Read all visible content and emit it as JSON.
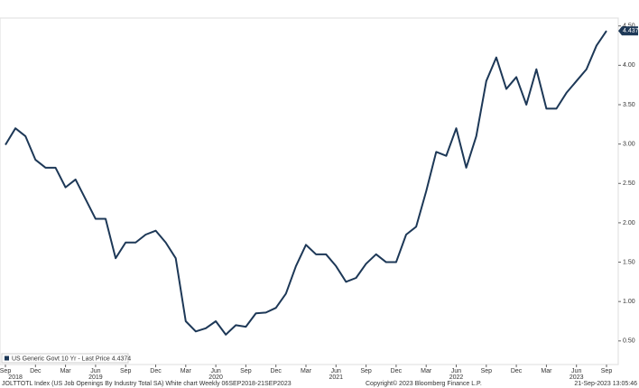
{
  "chart_data": {
    "type": "line",
    "x": [
      "2018-09",
      "2018-10",
      "2018-11",
      "2018-12",
      "2019-01",
      "2019-02",
      "2019-03",
      "2019-04",
      "2019-05",
      "2019-06",
      "2019-07",
      "2019-08",
      "2019-09",
      "2019-10",
      "2019-11",
      "2019-12",
      "2020-01",
      "2020-02",
      "2020-03",
      "2020-04",
      "2020-05",
      "2020-06",
      "2020-07",
      "2020-08",
      "2020-09",
      "2020-10",
      "2020-11",
      "2020-12",
      "2021-01",
      "2021-02",
      "2021-03",
      "2021-04",
      "2021-05",
      "2021-06",
      "2021-07",
      "2021-08",
      "2021-09",
      "2021-10",
      "2021-11",
      "2021-12",
      "2022-01",
      "2022-02",
      "2022-03",
      "2022-04",
      "2022-05",
      "2022-06",
      "2022-07",
      "2022-08",
      "2022-09",
      "2022-10",
      "2022-11",
      "2022-12",
      "2023-01",
      "2023-02",
      "2023-03",
      "2023-04",
      "2023-05",
      "2023-06",
      "2023-07",
      "2023-08",
      "2023-09"
    ],
    "series": [
      {
        "name": "US Generic Govt 10 Yr - Last Price 4.4374",
        "color": "#1d3857",
        "values": [
          2.99,
          3.2,
          3.1,
          2.8,
          2.7,
          2.7,
          2.45,
          2.55,
          2.3,
          2.05,
          2.05,
          1.55,
          1.75,
          1.75,
          1.85,
          1.9,
          1.75,
          1.55,
          0.75,
          0.62,
          0.66,
          0.75,
          0.58,
          0.7,
          0.68,
          0.85,
          0.86,
          0.92,
          1.1,
          1.45,
          1.72,
          1.6,
          1.6,
          1.45,
          1.25,
          1.3,
          1.48,
          1.6,
          1.5,
          1.5,
          1.85,
          1.95,
          2.4,
          2.9,
          2.85,
          3.2,
          2.7,
          3.1,
          3.8,
          4.1,
          3.7,
          3.85,
          3.5,
          3.95,
          3.45,
          3.45,
          3.65,
          3.8,
          3.95,
          4.25,
          4.4374
        ]
      }
    ],
    "xlim": [
      "2018-09",
      "2023-09"
    ],
    "xticks": [
      {
        "value": "2018-09",
        "label": "Sep"
      },
      {
        "value": "2018-12",
        "label": "Dec"
      },
      {
        "value": "2019-03",
        "label": "Mar"
      },
      {
        "value": "2019-06",
        "label": "Jun"
      },
      {
        "value": "2019-09",
        "label": "Sep"
      },
      {
        "value": "2019-12",
        "label": "Dec"
      },
      {
        "value": "2020-03",
        "label": "Mar"
      },
      {
        "value": "2020-06",
        "label": "Jun"
      },
      {
        "value": "2020-09",
        "label": "Sep"
      },
      {
        "value": "2020-12",
        "label": "Dec"
      },
      {
        "value": "2021-03",
        "label": "Mar"
      },
      {
        "value": "2021-06",
        "label": "Jun"
      },
      {
        "value": "2021-09",
        "label": "Sep"
      },
      {
        "value": "2021-12",
        "label": "Dec"
      },
      {
        "value": "2022-03",
        "label": "Mar"
      },
      {
        "value": "2022-06",
        "label": "Jun"
      },
      {
        "value": "2022-09",
        "label": "Sep"
      },
      {
        "value": "2022-12",
        "label": "Dec"
      },
      {
        "value": "2023-03",
        "label": "Mar"
      },
      {
        "value": "2023-06",
        "label": "Jun"
      },
      {
        "value": "2023-09",
        "label": "Sep"
      }
    ],
    "year_labels": [
      {
        "value": "2018-10",
        "label": "2018"
      },
      {
        "value": "2019-06",
        "label": "2019"
      },
      {
        "value": "2020-06",
        "label": "2020"
      },
      {
        "value": "2021-06",
        "label": "2021"
      },
      {
        "value": "2022-06",
        "label": "2022"
      },
      {
        "value": "2023-06",
        "label": "2023"
      }
    ],
    "ylim": [
      0.2,
      4.6
    ],
    "yticks": [
      {
        "value": 0.5,
        "label": "0.50"
      },
      {
        "value": 1,
        "label": "1.00"
      },
      {
        "value": 1.5,
        "label": "1.50"
      },
      {
        "value": 2,
        "label": "2.00"
      },
      {
        "value": 2.5,
        "label": "2.50"
      },
      {
        "value": 3,
        "label": "3.00"
      },
      {
        "value": 3.5,
        "label": "3.50"
      },
      {
        "value": 4,
        "label": "4.00"
      },
      {
        "value": 4.5,
        "label": "4.50"
      }
    ],
    "last_price_label": "4.4374",
    "footer_left": "JOLTTOTL Index (US Job Openings By Industry Total SA) White chart  Weekly 06SEP2018-21SEP2023",
    "footer_center": "Copyright© 2023 Bloomberg Finance L.P.",
    "footer_right": "21-Sep-2023 13:05:46",
    "grid": false
  }
}
